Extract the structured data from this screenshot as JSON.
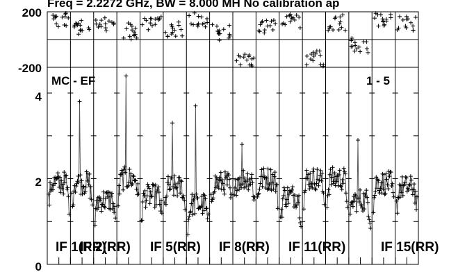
{
  "chart_data": {
    "type": "scatter",
    "title": "Freq = 2.2272 GHz, BW = 8.000 MH  No calibration ap",
    "baseline_label": "MC - EF",
    "baseline_index": "1 - 5",
    "phase_panel": {
      "y_tick_labels": [
        "200",
        "-200"
      ],
      "ylim": [
        -200,
        200
      ]
    },
    "amp_panel": {
      "y_tick_labels": [
        "4",
        "2",
        "0"
      ],
      "ylim": [
        0,
        4.6
      ]
    },
    "if_labels": [
      "IF 1(RR)",
      "IF 2(RR)",
      "IF 5(RR)",
      "IF 8(RR)",
      "IF 11(RR)",
      "IF 15(RR)"
    ],
    "n_channels": 16,
    "points_per_channel": 30,
    "amp_channel_means": [
      1.9,
      1.9,
      1.5,
      2.0,
      1.6,
      1.8,
      1.4,
      1.9,
      2.0,
      2.0,
      1.6,
      2.0,
      2.0,
      1.5,
      1.9,
      1.8
    ],
    "amp_spikes": [
      {
        "channel": 1,
        "value": 3.8
      },
      {
        "channel": 3,
        "value": 4.4
      },
      {
        "channel": 5,
        "value": 3.3
      },
      {
        "channel": 6,
        "value": 3.7
      },
      {
        "channel": 8,
        "value": 2.8
      },
      {
        "channel": 13,
        "value": 2.9
      }
    ],
    "phase_channel_means": [
      140,
      80,
      120,
      60,
      130,
      70,
      140,
      50,
      -160,
      100,
      140,
      -140,
      120,
      -40,
      150,
      110
    ]
  }
}
